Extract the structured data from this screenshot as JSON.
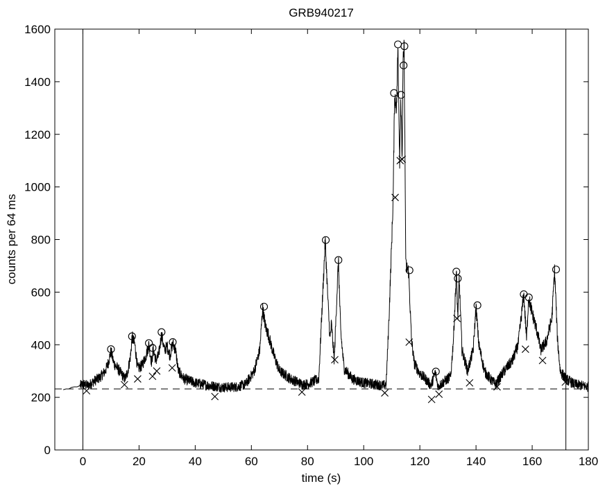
{
  "chart_data": {
    "type": "line",
    "title": "GRB940217",
    "xlabel": "time (s)",
    "ylabel": "counts per 64 ms",
    "xlim": [
      -10,
      180
    ],
    "ylim": [
      0,
      1600
    ],
    "xticks": [
      0,
      20,
      40,
      60,
      80,
      100,
      120,
      140,
      160,
      180
    ],
    "yticks": [
      0,
      200,
      400,
      600,
      800,
      1000,
      1200,
      1400,
      1600
    ],
    "grid": false,
    "background_level": 232,
    "vertical_markers": [
      0,
      172
    ],
    "light_curve_knots": [
      [
        -7,
        229
      ],
      [
        -6,
        232
      ],
      [
        -5,
        232
      ],
      [
        -4,
        238
      ],
      [
        -3,
        240
      ],
      [
        -2,
        240
      ],
      [
        -1,
        245
      ],
      [
        0,
        250
      ],
      [
        2,
        245
      ],
      [
        4,
        262
      ],
      [
        6,
        275
      ],
      [
        8,
        300
      ],
      [
        9,
        330
      ],
      [
        10,
        375
      ],
      [
        11,
        330
      ],
      [
        13,
        300
      ],
      [
        15,
        270
      ],
      [
        16,
        300
      ],
      [
        17,
        360
      ],
      [
        17.5,
        430
      ],
      [
        18.5,
        400
      ],
      [
        19.5,
        310
      ],
      [
        21,
        320
      ],
      [
        22.5,
        360
      ],
      [
        23.5,
        400
      ],
      [
        24.5,
        330
      ],
      [
        25,
        385
      ],
      [
        26,
        340
      ],
      [
        27,
        360
      ],
      [
        28,
        440
      ],
      [
        29,
        380
      ],
      [
        30,
        395
      ],
      [
        31,
        360
      ],
      [
        32,
        405
      ],
      [
        33,
        380
      ],
      [
        34,
        300
      ],
      [
        36,
        270
      ],
      [
        40,
        255
      ],
      [
        45,
        245
      ],
      [
        50,
        238
      ],
      [
        55,
        240
      ],
      [
        58,
        250
      ],
      [
        61,
        300
      ],
      [
        63,
        380
      ],
      [
        64,
        540
      ],
      [
        65,
        470
      ],
      [
        66,
        440
      ],
      [
        68,
        360
      ],
      [
        70,
        300
      ],
      [
        74,
        270
      ],
      [
        78,
        250
      ],
      [
        80,
        250
      ],
      [
        84,
        270
      ],
      [
        85,
        500
      ],
      [
        86.3,
        795
      ],
      [
        87.3,
        560
      ],
      [
        88,
        420
      ],
      [
        88.5,
        480
      ],
      [
        89.5,
        340
      ],
      [
        90.5,
        600
      ],
      [
        91,
        720
      ],
      [
        91.8,
        450
      ],
      [
        93,
        310
      ],
      [
        96,
        270
      ],
      [
        100,
        255
      ],
      [
        104,
        250
      ],
      [
        107,
        245
      ],
      [
        108,
        250
      ],
      [
        109,
        500
      ],
      [
        110,
        800
      ],
      [
        110.5,
        960
      ],
      [
        111,
        1350
      ],
      [
        111.7,
        1300
      ],
      [
        112.2,
        1540
      ],
      [
        112.8,
        1100
      ],
      [
        113.2,
        1340
      ],
      [
        113.7,
        1100
      ],
      [
        114,
        1460
      ],
      [
        114.4,
        1535
      ],
      [
        115,
        700
      ],
      [
        116,
        680
      ],
      [
        117,
        420
      ],
      [
        118,
        330
      ],
      [
        120,
        290
      ],
      [
        122,
        270
      ],
      [
        124,
        245
      ],
      [
        125.5,
        295
      ],
      [
        126.5,
        240
      ],
      [
        128,
        255
      ],
      [
        131,
        280
      ],
      [
        132,
        430
      ],
      [
        133,
        675
      ],
      [
        133.5,
        500
      ],
      [
        134,
        650
      ],
      [
        135,
        380
      ],
      [
        137,
        300
      ],
      [
        139,
        380
      ],
      [
        140,
        545
      ],
      [
        141,
        400
      ],
      [
        143,
        300
      ],
      [
        145,
        270
      ],
      [
        147,
        250
      ],
      [
        150,
        300
      ],
      [
        153,
        340
      ],
      [
        155,
        400
      ],
      [
        157,
        590
      ],
      [
        158,
        420
      ],
      [
        158.7,
        580
      ],
      [
        160,
        520
      ],
      [
        162,
        440
      ],
      [
        163,
        380
      ],
      [
        165,
        410
      ],
      [
        167,
        500
      ],
      [
        168,
        685
      ],
      [
        169,
        420
      ],
      [
        170,
        300
      ],
      [
        172,
        270
      ],
      [
        175,
        250
      ],
      [
        180,
        240
      ]
    ],
    "peaks": [
      [
        10,
        383
      ],
      [
        17.5,
        432
      ],
      [
        23.5,
        406
      ],
      [
        24.8,
        388
      ],
      [
        28,
        448
      ],
      [
        32,
        410
      ],
      [
        64.5,
        545
      ],
      [
        86.5,
        798
      ],
      [
        91,
        722
      ],
      [
        110.8,
        1357
      ],
      [
        112.2,
        1542
      ],
      [
        113.3,
        1350
      ],
      [
        114.2,
        1462
      ],
      [
        114.5,
        1535
      ],
      [
        116.3,
        683
      ],
      [
        125.7,
        298
      ],
      [
        133,
        678
      ],
      [
        133.5,
        652
      ],
      [
        140.5,
        550
      ],
      [
        157,
        592
      ],
      [
        158.8,
        580
      ],
      [
        168.5,
        686
      ]
    ],
    "minima": [
      [
        1.3,
        225
      ],
      [
        14.8,
        248
      ],
      [
        19.5,
        270
      ],
      [
        24.8,
        280
      ],
      [
        26.3,
        300
      ],
      [
        31.8,
        312
      ],
      [
        47,
        203
      ],
      [
        78,
        220
      ],
      [
        89.7,
        343
      ],
      [
        107.5,
        217
      ],
      [
        111.2,
        960
      ],
      [
        113,
        1100
      ],
      [
        113.7,
        1105
      ],
      [
        116.2,
        410
      ],
      [
        124.2,
        192
      ],
      [
        126.8,
        212
      ],
      [
        133.2,
        500
      ],
      [
        137.7,
        255
      ],
      [
        147.5,
        240
      ],
      [
        157.6,
        383
      ],
      [
        163.7,
        340
      ],
      [
        171.8,
        258
      ]
    ]
  }
}
